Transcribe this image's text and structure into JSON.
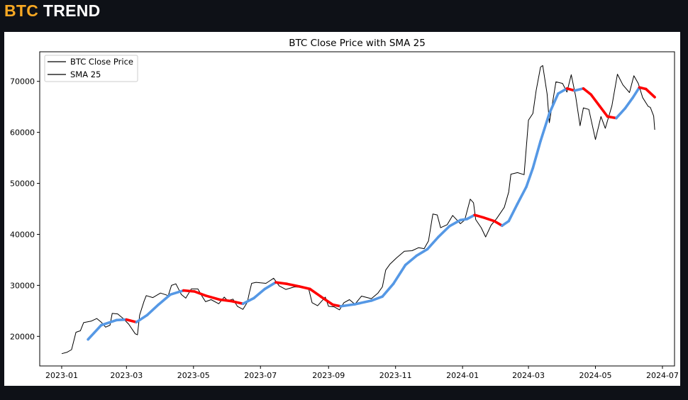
{
  "app": {
    "brand": "BTC",
    "title": "TREND"
  },
  "colors": {
    "brand": "#f7a823",
    "price": "#000000",
    "sma_up": "#5598e5",
    "sma_down": "#ff0000",
    "background": "#0e1117"
  },
  "chart_data": {
    "type": "line",
    "title": "BTC Close Price with SMA 25",
    "xlabel": "",
    "ylabel": "",
    "x_ticks": [
      "2023-01",
      "2023-03",
      "2023-05",
      "2023-07",
      "2023-09",
      "2023-11",
      "2024-01",
      "2024-03",
      "2024-05",
      "2024-07"
    ],
    "y_ticks": [
      20000,
      30000,
      40000,
      50000,
      60000,
      70000
    ],
    "xlim": [
      "2022-12-12",
      "2024-07-12"
    ],
    "ylim": [
      14200,
      75800
    ],
    "grid": false,
    "legend": {
      "position": "top-left",
      "entries": [
        "BTC Close Price",
        "SMA 25"
      ]
    },
    "series": [
      {
        "name": "BTC Close Price",
        "color": "#000000",
        "points": [
          [
            "2023-01-01",
            16600
          ],
          [
            "2023-01-06",
            16900
          ],
          [
            "2023-01-10",
            17400
          ],
          [
            "2023-01-14",
            20800
          ],
          [
            "2023-01-18",
            21100
          ],
          [
            "2023-01-21",
            22700
          ],
          [
            "2023-01-28",
            23000
          ],
          [
            "2023-02-02",
            23500
          ],
          [
            "2023-02-06",
            22800
          ],
          [
            "2023-02-10",
            21800
          ],
          [
            "2023-02-14",
            22200
          ],
          [
            "2023-02-16",
            24500
          ],
          [
            "2023-02-21",
            24400
          ],
          [
            "2023-02-26",
            23500
          ],
          [
            "2023-03-03",
            22400
          ],
          [
            "2023-03-09",
            20500
          ],
          [
            "2023-03-11",
            20300
          ],
          [
            "2023-03-13",
            24200
          ],
          [
            "2023-03-17",
            26900
          ],
          [
            "2023-03-19",
            28000
          ],
          [
            "2023-03-25",
            27600
          ],
          [
            "2023-04-01",
            28500
          ],
          [
            "2023-04-08",
            28000
          ],
          [
            "2023-04-11",
            30000
          ],
          [
            "2023-04-15",
            30300
          ],
          [
            "2023-04-20",
            28200
          ],
          [
            "2023-04-24",
            27500
          ],
          [
            "2023-04-29",
            29300
          ],
          [
            "2023-05-05",
            29300
          ],
          [
            "2023-05-09",
            27800
          ],
          [
            "2023-05-12",
            26800
          ],
          [
            "2023-05-17",
            27200
          ],
          [
            "2023-05-24",
            26400
          ],
          [
            "2023-05-29",
            27700
          ],
          [
            "2023-06-01",
            27000
          ],
          [
            "2023-06-06",
            27300
          ],
          [
            "2023-06-10",
            25900
          ],
          [
            "2023-06-15",
            25300
          ],
          [
            "2023-06-19",
            26700
          ],
          [
            "2023-06-21",
            28700
          ],
          [
            "2023-06-23",
            30400
          ],
          [
            "2023-06-27",
            30600
          ],
          [
            "2023-07-01",
            30500
          ],
          [
            "2023-07-06",
            30400
          ],
          [
            "2023-07-13",
            31400
          ],
          [
            "2023-07-18",
            29900
          ],
          [
            "2023-07-24",
            29200
          ],
          [
            "2023-08-01",
            29700
          ],
          [
            "2023-08-08",
            29600
          ],
          [
            "2023-08-14",
            29200
          ],
          [
            "2023-08-17",
            26600
          ],
          [
            "2023-08-22",
            26000
          ],
          [
            "2023-08-29",
            27700
          ],
          [
            "2023-09-01",
            25900
          ],
          [
            "2023-09-06",
            25800
          ],
          [
            "2023-09-11",
            25200
          ],
          [
            "2023-09-15",
            26600
          ],
          [
            "2023-09-20",
            27200
          ],
          [
            "2023-09-25",
            26300
          ],
          [
            "2023-10-01",
            27900
          ],
          [
            "2023-10-10",
            27400
          ],
          [
            "2023-10-16",
            28500
          ],
          [
            "2023-10-20",
            29700
          ],
          [
            "2023-10-23",
            33000
          ],
          [
            "2023-10-27",
            34200
          ],
          [
            "2023-11-02",
            35400
          ],
          [
            "2023-11-09",
            36700
          ],
          [
            "2023-11-16",
            36800
          ],
          [
            "2023-11-22",
            37400
          ],
          [
            "2023-11-27",
            37200
          ],
          [
            "2023-12-01",
            38700
          ],
          [
            "2023-12-05",
            44000
          ],
          [
            "2023-12-09",
            43800
          ],
          [
            "2023-12-12",
            41300
          ],
          [
            "2023-12-18",
            41900
          ],
          [
            "2023-12-23",
            43700
          ],
          [
            "2023-12-30",
            42100
          ],
          [
            "2024-01-03",
            42800
          ],
          [
            "2024-01-08",
            46900
          ],
          [
            "2024-01-11",
            46200
          ],
          [
            "2024-01-13",
            42900
          ],
          [
            "2024-01-18",
            41300
          ],
          [
            "2024-01-22",
            39500
          ],
          [
            "2024-01-27",
            41800
          ],
          [
            "2024-02-01",
            43100
          ],
          [
            "2024-02-08",
            45300
          ],
          [
            "2024-02-12",
            48300
          ],
          [
            "2024-02-14",
            51800
          ],
          [
            "2024-02-20",
            52100
          ],
          [
            "2024-02-26",
            51700
          ],
          [
            "2024-02-28",
            57000
          ],
          [
            "2024-03-01",
            62400
          ],
          [
            "2024-03-05",
            63700
          ],
          [
            "2024-03-08",
            68200
          ],
          [
            "2024-03-12",
            72800
          ],
          [
            "2024-03-14",
            73100
          ],
          [
            "2024-03-18",
            67500
          ],
          [
            "2024-03-20",
            61900
          ],
          [
            "2024-03-26",
            69900
          ],
          [
            "2024-04-01",
            69600
          ],
          [
            "2024-04-05",
            67900
          ],
          [
            "2024-04-09",
            71300
          ],
          [
            "2024-04-13",
            67100
          ],
          [
            "2024-04-17",
            61300
          ],
          [
            "2024-04-20",
            64800
          ],
          [
            "2024-04-25",
            64500
          ],
          [
            "2024-05-01",
            58600
          ],
          [
            "2024-05-06",
            63100
          ],
          [
            "2024-05-10",
            60800
          ],
          [
            "2024-05-16",
            65200
          ],
          [
            "2024-05-21",
            71400
          ],
          [
            "2024-05-26",
            69300
          ],
          [
            "2024-06-01",
            67800
          ],
          [
            "2024-06-05",
            71100
          ],
          [
            "2024-06-09",
            69600
          ],
          [
            "2024-06-13",
            66800
          ],
          [
            "2024-06-18",
            65100
          ],
          [
            "2024-06-20",
            64900
          ],
          [
            "2024-06-23",
            63200
          ],
          [
            "2024-06-24",
            60500
          ]
        ]
      },
      {
        "name": "SMA 25",
        "colors_by_trend": {
          "rising": "#5598e5",
          "falling": "#ff0000"
        },
        "points": [
          [
            "2023-01-25",
            19400
          ],
          [
            "2023-02-06",
            22200
          ],
          [
            "2023-02-20",
            23200
          ],
          [
            "2023-03-01",
            23300
          ],
          [
            "2023-03-10",
            22800
          ],
          [
            "2023-03-20",
            24200
          ],
          [
            "2023-03-30",
            26200
          ],
          [
            "2023-04-10",
            28200
          ],
          [
            "2023-04-22",
            29000
          ],
          [
            "2023-05-02",
            28800
          ],
          [
            "2023-05-12",
            28000
          ],
          [
            "2023-05-25",
            27200
          ],
          [
            "2023-06-05",
            26900
          ],
          [
            "2023-06-15",
            26400
          ],
          [
            "2023-06-25",
            27500
          ],
          [
            "2023-07-05",
            29300
          ],
          [
            "2023-07-15",
            30600
          ],
          [
            "2023-07-25",
            30300
          ],
          [
            "2023-08-05",
            29800
          ],
          [
            "2023-08-15",
            29300
          ],
          [
            "2023-08-25",
            27800
          ],
          [
            "2023-09-05",
            26200
          ],
          [
            "2023-09-12",
            25900
          ],
          [
            "2023-09-25",
            26300
          ],
          [
            "2023-10-10",
            27000
          ],
          [
            "2023-10-20",
            27800
          ],
          [
            "2023-10-30",
            30300
          ],
          [
            "2023-11-10",
            34000
          ],
          [
            "2023-11-20",
            35800
          ],
          [
            "2023-11-30",
            37100
          ],
          [
            "2023-12-10",
            39500
          ],
          [
            "2023-12-20",
            41600
          ],
          [
            "2023-12-30",
            42800
          ],
          [
            "2024-01-05",
            43000
          ],
          [
            "2024-01-12",
            43800
          ],
          [
            "2024-01-20",
            43300
          ],
          [
            "2024-01-30",
            42600
          ],
          [
            "2024-02-06",
            41700
          ],
          [
            "2024-02-12",
            42600
          ],
          [
            "2024-02-20",
            46000
          ],
          [
            "2024-02-28",
            49300
          ],
          [
            "2024-03-05",
            53000
          ],
          [
            "2024-03-12",
            58300
          ],
          [
            "2024-03-20",
            63700
          ],
          [
            "2024-03-28",
            67600
          ],
          [
            "2024-04-05",
            68600
          ],
          [
            "2024-04-12",
            68200
          ],
          [
            "2024-04-20",
            68600
          ],
          [
            "2024-04-27",
            67400
          ],
          [
            "2024-05-05",
            65100
          ],
          [
            "2024-05-12",
            63100
          ],
          [
            "2024-05-20",
            62800
          ],
          [
            "2024-05-28",
            64700
          ],
          [
            "2024-06-04",
            66800
          ],
          [
            "2024-06-10",
            68800
          ],
          [
            "2024-06-16",
            68500
          ],
          [
            "2024-06-24",
            66900
          ]
        ]
      }
    ]
  }
}
